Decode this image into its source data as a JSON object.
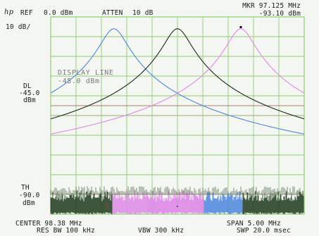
{
  "header": {
    "brand": "hp",
    "ref_label": "REF",
    "ref_value": "0.0 dBm",
    "atten_label": "ATTEN",
    "atten_value": "10 dB",
    "marker_freq": "MKR 97.125 MHz",
    "marker_level": "-93.10 dBm"
  },
  "scale_label": "10 dB/",
  "display_line": {
    "title": "DISPLAY LINE",
    "value": "-45.0 dBm",
    "side_label": "DL",
    "side_value": "-45.0",
    "side_unit": "dBm",
    "level_dbm": -45.0
  },
  "threshold": {
    "side_label": "TH",
    "side_value": "-90.0",
    "side_unit": "dBm",
    "level_dbm": -90.0
  },
  "footer": {
    "center": "CENTER 98.38 MHz",
    "span": "SPAN 5.00 MHz",
    "res_bw": "RES BW 100 kHz",
    "vbw": "VBW 300 kHz",
    "sweep": "SWP 20.0 msec"
  },
  "colors": {
    "grid": "#8fcf6f",
    "trace_a": "#4d86e0",
    "trace_b": "#1b2b1b",
    "trace_c": "#dd8ae6",
    "display_line": "#a5826d",
    "noise_dark": "#1f3a1f"
  },
  "chart_data": {
    "type": "line",
    "ref_level_dbm": 0.0,
    "db_per_div": 10,
    "center_mhz": 98.38,
    "span_mhz": 5.0,
    "ylim": [
      -100,
      0
    ],
    "xlim": [
      95.88,
      100.88
    ],
    "grid": true,
    "series": [
      {
        "color": "#4d86e0",
        "peak_mhz": 97.125,
        "peak_dbm": -6.0
      },
      {
        "color": "#1b2b1b",
        "peak_mhz": 98.38,
        "peak_dbm": -6.0
      },
      {
        "color": "#dd8ae6",
        "peak_mhz": 99.63,
        "peak_dbm": -6.0
      }
    ]
  }
}
